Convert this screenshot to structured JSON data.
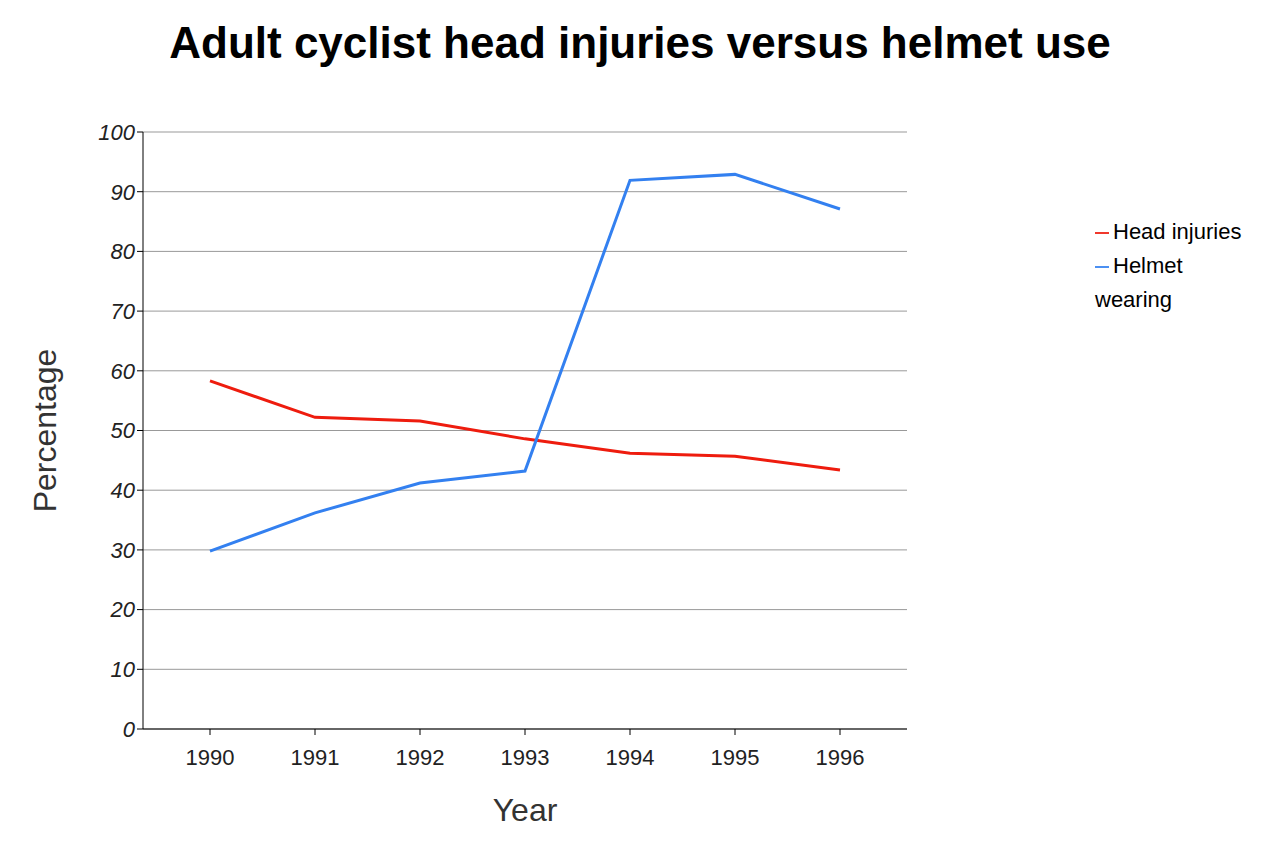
{
  "chart_data": {
    "type": "line",
    "title": "Adult cyclist head injuries versus helmet use",
    "x_label": "Year",
    "y_label": "Percentage",
    "categories": [
      "1990",
      "1991",
      "1992",
      "1993",
      "1994",
      "1995",
      "1996"
    ],
    "series": [
      {
        "name": "Head injuries",
        "color": "#ee1c0e",
        "values": [
          58.3,
          52.2,
          51.6,
          48.6,
          46.2,
          45.7,
          43.4
        ]
      },
      {
        "name": "Helmet wearing",
        "color": "#3380f0",
        "values": [
          29.8,
          36.2,
          41.2,
          43.2,
          91.9,
          92.9,
          87.1
        ]
      }
    ],
    "ylim": [
      0,
      100
    ],
    "yticks": [
      0,
      10,
      20,
      30,
      40,
      50,
      60,
      70,
      80,
      90,
      100
    ],
    "grid": true,
    "legend": "right"
  }
}
